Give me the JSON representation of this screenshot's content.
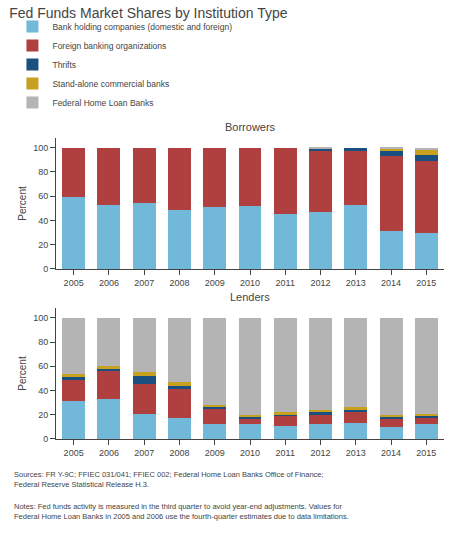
{
  "title": "Fed Funds Market Shares by Institution Type",
  "legend": "top",
  "annotations": [
    "Sources: FR Y-9C; FFIEC 031/041; FFIEC 002; Federal Home Loan Banks Office of Finance;\nFederal Reserve Statistical Release H.3.",
    "Notes: Fed funds activity is measured in the third quarter to avoid year-end adjustments. Values for\nFederal Home Loan Banks in 2005 and 2006 use the fourth-quarter estimates due to data limitations."
  ],
  "chart_data": [
    {
      "type": "bar",
      "stacked": true,
      "title": "Borrowers",
      "ylabel": "Percent",
      "grid": false,
      "categories": [
        "2005",
        "2006",
        "2007",
        "2008",
        "2009",
        "2010",
        "2011",
        "2012",
        "2013",
        "2014",
        "2015"
      ],
      "ylim": [
        0,
        108
      ],
      "yticks": [
        0,
        20,
        40,
        60,
        80,
        100
      ],
      "series": [
        {
          "name": "Bank holding companies (domestic and foreign)",
          "color": "#72b8d9",
          "values": [
            59,
            53,
            54,
            49,
            51,
            52,
            45,
            47,
            53,
            31,
            30
          ]
        },
        {
          "name": "Foreign banking organizations",
          "color": "#b04040",
          "values": [
            41,
            47,
            46,
            51,
            49,
            48,
            55,
            51,
            44,
            62,
            59
          ]
        },
        {
          "name": "Thrifts",
          "color": "#1a5080",
          "values": [
            0,
            0,
            0,
            0,
            0,
            0,
            0,
            1,
            3,
            5,
            5
          ]
        },
        {
          "name": "Stand-alone commercial banks",
          "color": "#c8a020",
          "values": [
            0,
            0,
            0,
            0,
            0,
            0,
            0,
            0,
            0,
            1,
            4
          ]
        },
        {
          "name": "Federal Home Loan Banks",
          "color": "#b4b4b4",
          "values": [
            0,
            0,
            0,
            0,
            0,
            0,
            0,
            1,
            0,
            1,
            2
          ]
        }
      ]
    },
    {
      "type": "bar",
      "stacked": true,
      "title": "Lenders",
      "ylabel": "Percent",
      "grid": false,
      "categories": [
        "2005",
        "2006",
        "2007",
        "2008",
        "2009",
        "2010",
        "2011",
        "2012",
        "2013",
        "2014",
        "2015"
      ],
      "ylim": [
        0,
        108
      ],
      "yticks": [
        0,
        20,
        40,
        60,
        80,
        100
      ],
      "series": [
        {
          "name": "Bank holding companies (domestic and foreign)",
          "color": "#72b8d9",
          "values": [
            31,
            33,
            21,
            17,
            12,
            12,
            11,
            12,
            13,
            10,
            12
          ]
        },
        {
          "name": "Foreign banking organizations",
          "color": "#b04040",
          "values": [
            18,
            23,
            24,
            24,
            13,
            5,
            8,
            8,
            10,
            7,
            6
          ]
        },
        {
          "name": "Thrifts",
          "color": "#1a5080",
          "values": [
            2,
            2,
            7,
            3,
            1,
            1,
            1,
            2,
            1,
            1,
            1
          ]
        },
        {
          "name": "Stand-alone commercial banks",
          "color": "#c8a020",
          "values": [
            3,
            2,
            3,
            3,
            2,
            2,
            2,
            2,
            2,
            2,
            2
          ]
        },
        {
          "name": "Federal Home Loan Banks",
          "color": "#b4b4b4",
          "values": [
            46,
            40,
            45,
            53,
            72,
            80,
            78,
            76,
            74,
            80,
            79
          ]
        }
      ]
    }
  ]
}
